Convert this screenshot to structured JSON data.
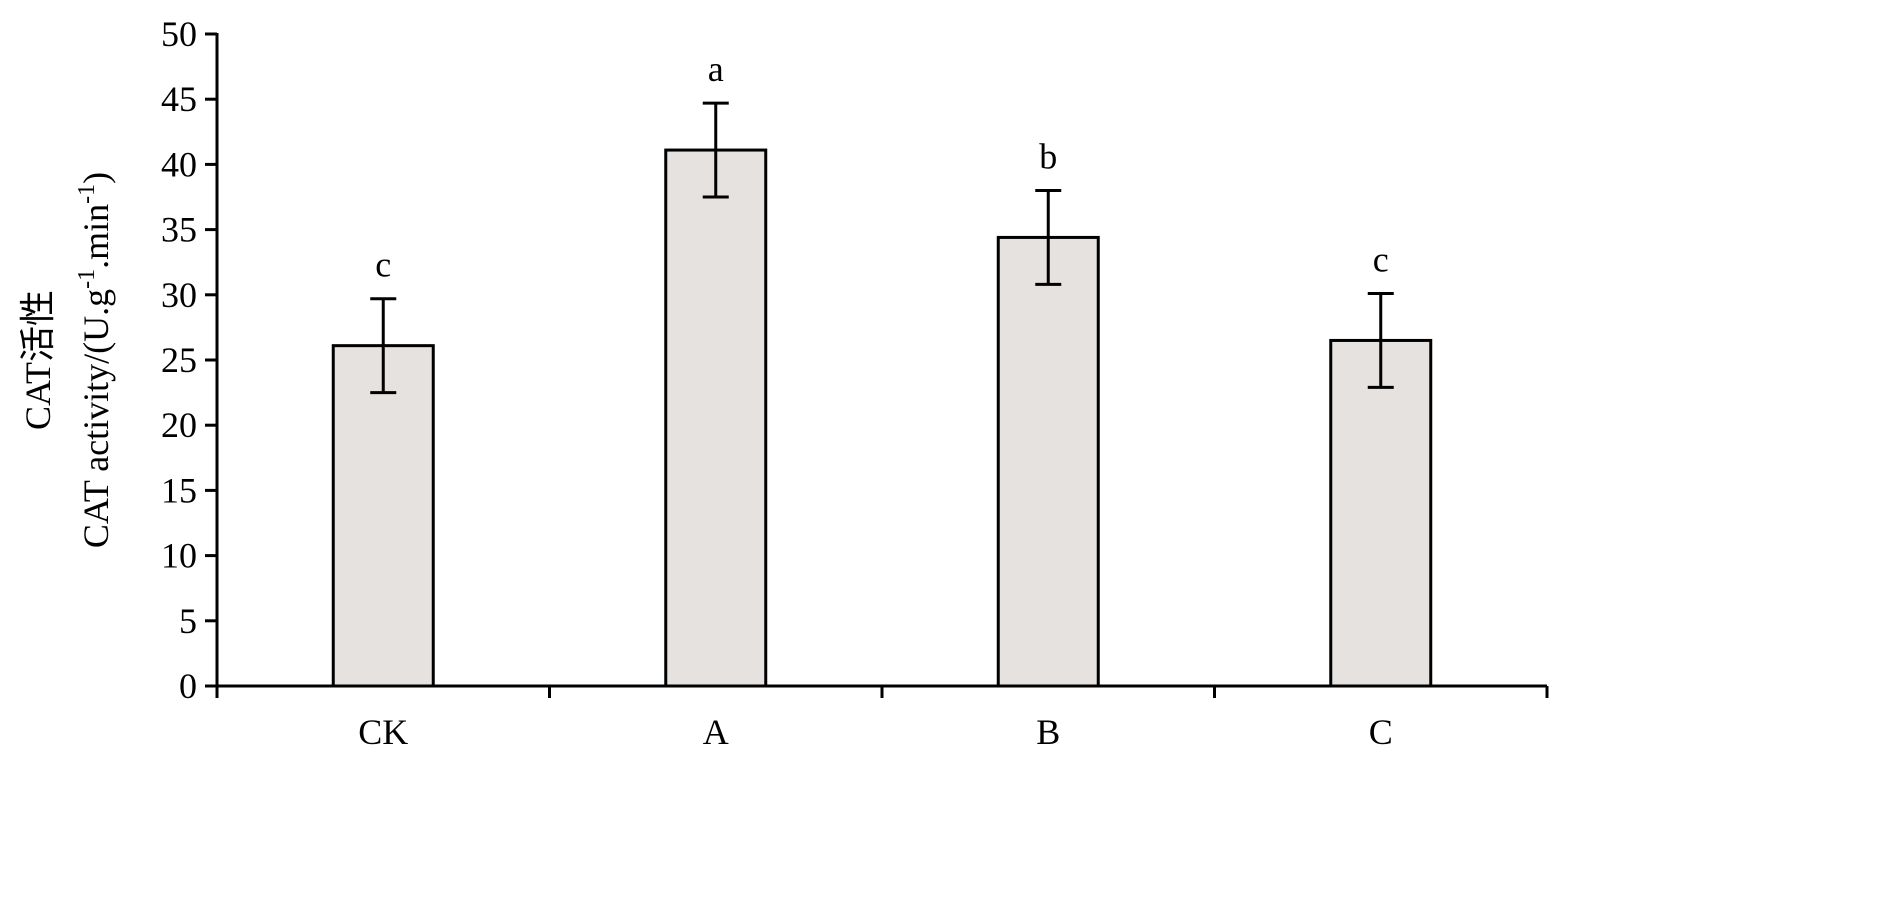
{
  "chart_data": {
    "type": "bar",
    "title": "",
    "ylabel_line1": "CAT活性",
    "ylabel_line2": {
      "pre": "CAT activity/(U.g",
      "sup1": "-1",
      "mid": ".min",
      "sup2": "-1",
      "post": ")"
    },
    "xlabel": "",
    "categories": [
      "CK",
      "A",
      "B",
      "C"
    ],
    "values": [
      26.1,
      41.1,
      34.4,
      26.5
    ],
    "errors": [
      3.6,
      3.6,
      3.6,
      3.6
    ],
    "significance_labels": [
      "c",
      "a",
      "b",
      "c"
    ],
    "ylim": [
      0,
      50
    ],
    "yticks": [
      0,
      5,
      10,
      15,
      20,
      25,
      30,
      35,
      40,
      45,
      50
    ],
    "grid": false,
    "bar_color": "#e5e2e0",
    "edge_color": "#000000"
  }
}
